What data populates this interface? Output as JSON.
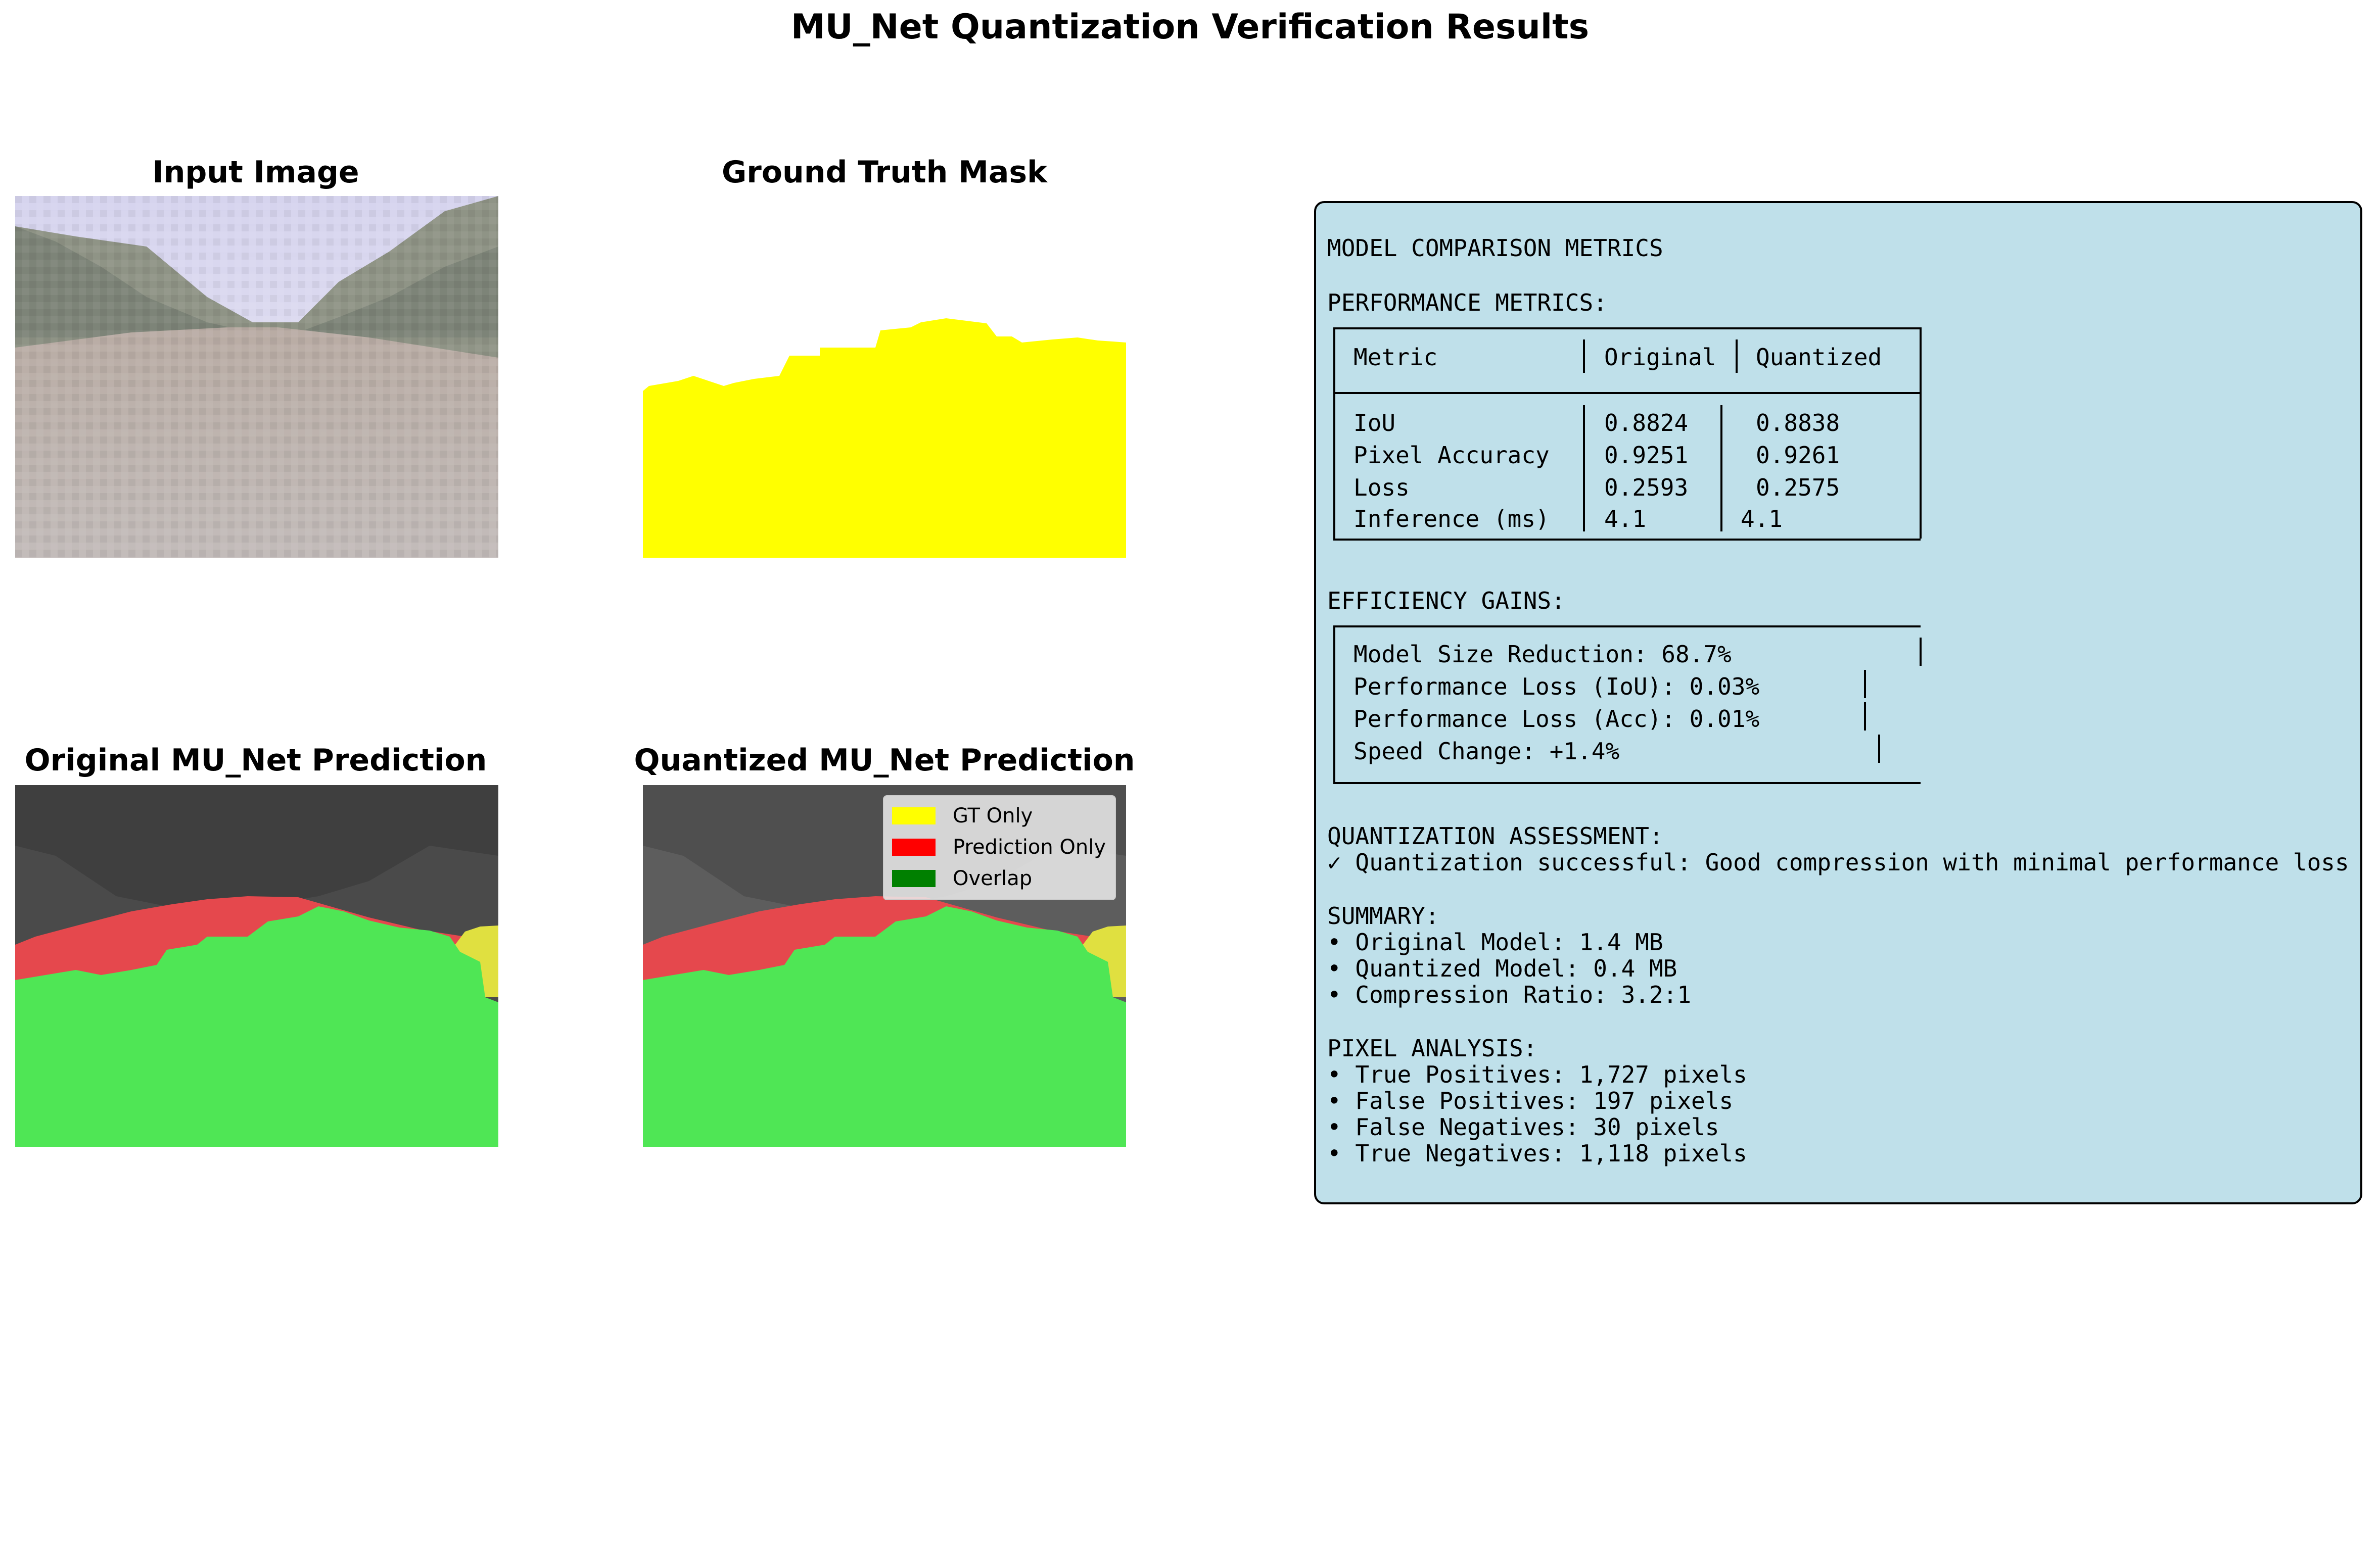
{
  "title": "MU_Net Quantization Verification Results",
  "panels": {
    "input": "Input Image",
    "ground_truth": "Ground Truth Mask",
    "original": "Original MU_Net Prediction",
    "quantized": "Quantized MU_Net Prediction"
  },
  "legend": [
    {
      "label": "GT Only",
      "color": "#ffff00"
    },
    {
      "label": "Prediction Only",
      "color": "#ff0000"
    },
    {
      "label": "Overlap",
      "color": "#008000"
    }
  ],
  "colors": {
    "metrics_bg": "#bfe0ea",
    "mask": "#ffff00",
    "overlap_display": "#4fe655",
    "pred_only_display": "#e5484d",
    "gt_only_display": "#e0e040"
  },
  "metrics": {
    "header": "MODEL COMPARISON METRICS",
    "performance_title": "PERFORMANCE METRICS:",
    "table": {
      "columns": [
        "Metric",
        "Original",
        "Quantized"
      ],
      "rows": [
        [
          "IoU",
          "0.8824",
          "0.8838"
        ],
        [
          "Pixel Accuracy",
          "0.9251",
          "0.9261"
        ],
        [
          "Loss",
          "0.2593",
          "0.2575"
        ],
        [
          "Inference (ms)",
          "4.1",
          "4.1"
        ]
      ]
    },
    "efficiency_title": "EFFICIENCY GAINS:",
    "efficiency": [
      "Model Size Reduction: 68.7%",
      "Performance Loss (IoU): 0.03%",
      "Performance Loss (Acc): 0.01%",
      "Speed Change: +1.4%"
    ],
    "assessment_title": "QUANTIZATION ASSESSMENT:",
    "assessment": "✓ Quantization successful: Good compression with minimal performance loss",
    "summary_title": "SUMMARY:",
    "summary": [
      "• Original Model: 1.4 MB",
      "• Quantized Model: 0.4 MB",
      "• Compression Ratio: 3.2:1"
    ],
    "pixel_title": "PIXEL ANALYSIS:",
    "pixel": [
      "• True Positives: 1,727 pixels",
      "• False Positives: 197 pixels",
      "• False Negatives: 30 pixels",
      "• True Negatives: 1,118 pixels"
    ]
  },
  "chart_data": {
    "type": "table",
    "columns": [
      "Metric",
      "Original",
      "Quantized"
    ],
    "rows": [
      [
        "IoU",
        0.8824,
        0.8838
      ],
      [
        "Pixel Accuracy",
        0.9251,
        0.9261
      ],
      [
        "Loss",
        0.2593,
        0.2575
      ],
      [
        "Inference (ms)",
        4.1,
        4.1
      ]
    ],
    "efficiency": {
      "model_size_reduction_pct": 68.7,
      "performance_loss_iou_pct": 0.03,
      "performance_loss_acc_pct": 0.01,
      "speed_change_pct": 1.4
    },
    "summary": {
      "original_model_mb": 1.4,
      "quantized_model_mb": 0.4,
      "compression_ratio": "3.2:1"
    },
    "pixel_analysis": {
      "true_positives": 1727,
      "false_positives": 197,
      "false_negatives": 30,
      "true_negatives": 1118
    }
  }
}
